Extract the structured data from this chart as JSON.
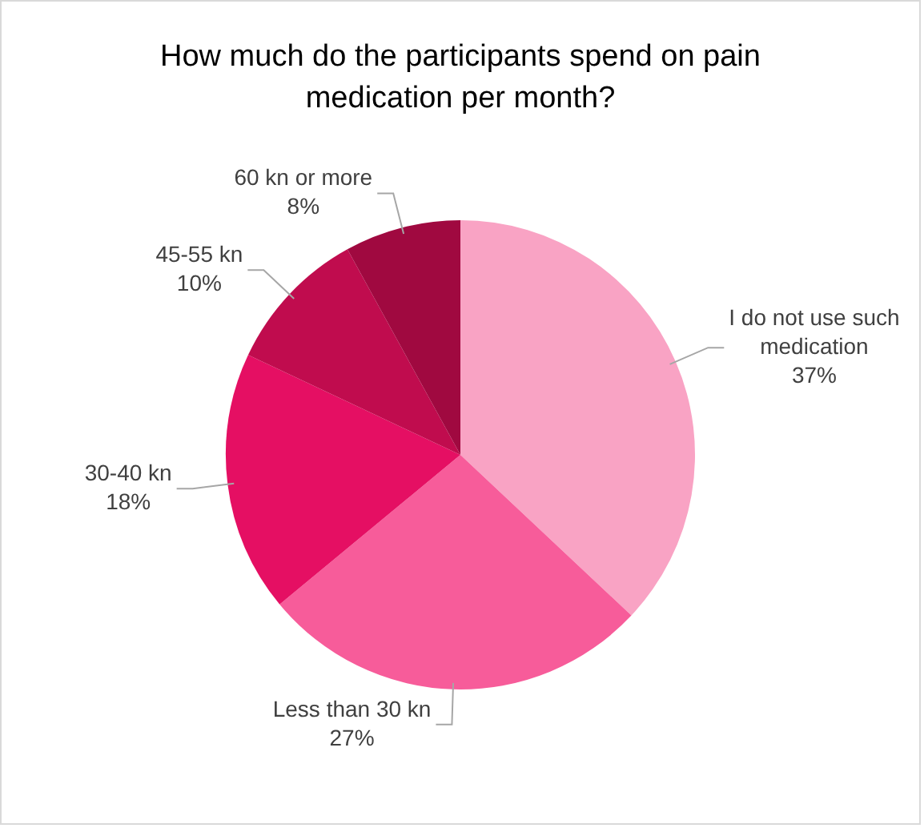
{
  "chart_data": {
    "type": "pie",
    "title": "How much do the participants spend on pain medication per month?",
    "categories": [
      "I do not use such medication",
      "Less than 30 kn",
      "30-40 kn",
      "45-55 kn",
      "60 kn or more"
    ],
    "values": [
      37,
      27,
      18,
      10,
      8
    ],
    "colors": [
      "#f9a3c4",
      "#f75c9a",
      "#e50f63",
      "#c00c4e",
      "#a00940"
    ],
    "value_labels": [
      "37%",
      "27%",
      "18%",
      "10%",
      "8%"
    ],
    "legend": false
  }
}
